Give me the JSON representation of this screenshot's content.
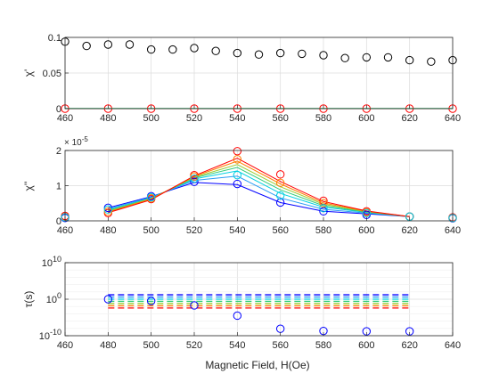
{
  "figure": {
    "xlabel": "Magnetic Field, H(Oe)"
  },
  "colors": {
    "axis": "#262626",
    "grid": "#dcdcdc",
    "black": "#000000",
    "red": "#ff0000",
    "orange": "#ff7f00",
    "yellow": "#d9d900",
    "yellowgreen": "#9acd32",
    "green": "#32cd7a",
    "cyan": "#00d0e0",
    "lightblue": "#2a9df4",
    "blue": "#0000ff"
  },
  "chart_data": [
    {
      "type": "scatter",
      "id": "chi-prime",
      "ylabel": "χ'",
      "xlim": [
        460,
        640
      ],
      "ylim": [
        0,
        0.1
      ],
      "xticks": [
        "460",
        "480",
        "500",
        "520",
        "540",
        "560",
        "580",
        "600",
        "620",
        "640"
      ],
      "yticks": [
        "0",
        "0.05",
        "0.1"
      ],
      "grid": true,
      "series": [
        {
          "color": "black",
          "marker": "circle",
          "line": false,
          "x": [
            460,
            470,
            480,
            490,
            500,
            510,
            520,
            530,
            540,
            550,
            560,
            570,
            580,
            590,
            600,
            610,
            620,
            630,
            640
          ],
          "y": [
            0.094,
            0.088,
            0.09,
            0.09,
            0.083,
            0.083,
            0.085,
            0.081,
            0.078,
            0.076,
            0.078,
            0.077,
            0.075,
            0.071,
            0.072,
            0.072,
            0.068,
            0.066,
            0.068
          ]
        },
        {
          "color": "red",
          "marker": "circle",
          "line": true,
          "x": [
            460,
            480,
            500,
            520,
            540,
            560,
            580,
            600,
            620,
            640
          ],
          "y": [
            0,
            0,
            0,
            0,
            0,
            0,
            0,
            0,
            0,
            0
          ]
        },
        {
          "color": "green",
          "marker": "none",
          "line": true,
          "x": [
            460,
            480,
            500,
            520,
            540,
            560,
            580,
            600,
            620,
            640
          ],
          "y": [
            0.0004,
            0.0004,
            0.0004,
            0.0004,
            0.0004,
            0.0004,
            0.0004,
            0.0004,
            0.0004,
            0.0004
          ]
        }
      ]
    },
    {
      "type": "line",
      "id": "chi-double-prime",
      "ylabel": "χ''",
      "exponent": "× 10",
      "exponent_power": "-5",
      "xlim": [
        460,
        640
      ],
      "ylim": [
        0,
        2
      ],
      "xticks": [
        "460",
        "480",
        "500",
        "520",
        "540",
        "560",
        "580",
        "600",
        "620",
        "640"
      ],
      "yticks": [
        "0",
        "1",
        "2"
      ],
      "grid": true,
      "series": [
        {
          "color": "blue",
          "marker": "none",
          "line": true,
          "x": [
            480,
            500,
            520,
            540,
            560,
            580,
            600,
            620
          ],
          "y": [
            0.37,
            0.69,
            1.09,
            1.03,
            0.52,
            0.27,
            0.2,
            0.12
          ]
        },
        {
          "color": "lightblue",
          "marker": "none",
          "line": true,
          "x": [
            480,
            500,
            520,
            540,
            560,
            580,
            600,
            620
          ],
          "y": [
            0.34,
            0.67,
            1.15,
            1.27,
            0.65,
            0.33,
            0.22,
            0.12
          ]
        },
        {
          "color": "cyan",
          "marker": "none",
          "line": true,
          "x": [
            480,
            500,
            520,
            540,
            560,
            580,
            600,
            620
          ],
          "y": [
            0.31,
            0.65,
            1.19,
            1.42,
            0.78,
            0.39,
            0.24,
            0.12
          ]
        },
        {
          "color": "green",
          "marker": "none",
          "line": true,
          "x": [
            480,
            500,
            520,
            540,
            560,
            580,
            600,
            620
          ],
          "y": [
            0.29,
            0.64,
            1.22,
            1.52,
            0.88,
            0.43,
            0.25,
            0.12
          ]
        },
        {
          "color": "yellowgreen",
          "marker": "none",
          "line": true,
          "x": [
            480,
            500,
            520,
            540,
            560,
            580,
            600,
            620
          ],
          "y": [
            0.27,
            0.63,
            1.24,
            1.6,
            0.97,
            0.47,
            0.26,
            0.12
          ]
        },
        {
          "color": "orange",
          "marker": "none",
          "line": true,
          "x": [
            480,
            500,
            520,
            540,
            560,
            580,
            600,
            620
          ],
          "y": [
            0.25,
            0.62,
            1.26,
            1.7,
            1.05,
            0.51,
            0.27,
            0.12
          ]
        },
        {
          "color": "red",
          "marker": "none",
          "line": true,
          "x": [
            480,
            500,
            520,
            540,
            560,
            580,
            600,
            620
          ],
          "y": [
            0.23,
            0.6,
            1.28,
            1.78,
            1.12,
            0.55,
            0.28,
            0.12
          ]
        },
        {
          "color": "red",
          "marker": "circle",
          "line": false,
          "x": [
            460,
            480,
            500,
            520,
            540,
            560,
            580,
            600,
            620,
            640
          ],
          "y": [
            0.14,
            0.22,
            0.62,
            1.3,
            1.98,
            1.32,
            0.57,
            0.27,
            0.12,
            0.1
          ]
        },
        {
          "color": "blue",
          "marker": "circle",
          "line": false,
          "x": [
            460,
            480,
            500,
            520,
            540,
            560,
            580,
            600,
            620,
            640
          ],
          "y": [
            0.08,
            0.37,
            0.7,
            1.11,
            1.05,
            0.52,
            0.27,
            0.17,
            0.12,
            0.07
          ]
        },
        {
          "color": "orange",
          "marker": "circle",
          "line": false,
          "x": [
            460,
            480,
            500,
            520,
            540,
            560,
            580,
            600,
            620,
            640
          ],
          "y": [
            0.11,
            0.26,
            0.64,
            1.26,
            1.75,
            1.08,
            0.5,
            0.24,
            0.12,
            0.08
          ]
        },
        {
          "color": "cyan",
          "marker": "circle",
          "line": false,
          "x": [
            460,
            480,
            500,
            520,
            540,
            560,
            580,
            600,
            620,
            640
          ],
          "y": [
            0.1,
            0.32,
            0.67,
            1.2,
            1.3,
            0.72,
            0.36,
            0.22,
            0.12,
            0.08
          ]
        }
      ]
    },
    {
      "type": "scatter",
      "id": "tau",
      "ylabel": "τ(s)",
      "ylog": true,
      "xlim": [
        460,
        640
      ],
      "ylim_exponent": [
        -10,
        10
      ],
      "xticks": [
        "460",
        "480",
        "500",
        "520",
        "540",
        "560",
        "580",
        "600",
        "620",
        "640"
      ],
      "yticks": [
        {
          "base": "10",
          "exp": "-10",
          "at": -10
        },
        {
          "base": "10",
          "exp": "0",
          "at": 0
        },
        {
          "base": "10",
          "exp": "10",
          "at": 10
        }
      ],
      "grid": true,
      "hlines": [
        {
          "color": "blue",
          "log10y": 1.2,
          "x": [
            480,
            620
          ]
        },
        {
          "color": "lightblue",
          "log10y": 0.6,
          "x": [
            480,
            620
          ]
        },
        {
          "color": "cyan",
          "log10y": 0.0,
          "x": [
            480,
            620
          ]
        },
        {
          "color": "green",
          "log10y": -0.6,
          "x": [
            480,
            620
          ]
        },
        {
          "color": "yellowgreen",
          "log10y": -1.2,
          "x": [
            480,
            620
          ]
        },
        {
          "color": "orange",
          "log10y": -1.8,
          "x": [
            480,
            620
          ]
        },
        {
          "color": "red",
          "log10y": -2.4,
          "x": [
            480,
            620
          ]
        }
      ],
      "series": [
        {
          "color": "blue",
          "marker": "circle",
          "line": false,
          "x": [
            480,
            500,
            520,
            540,
            560,
            580,
            600,
            620
          ],
          "log10y": [
            0.0,
            -0.5,
            -1.7,
            -4.5,
            -8.1,
            -8.7,
            -8.8,
            -8.8
          ]
        }
      ]
    }
  ]
}
